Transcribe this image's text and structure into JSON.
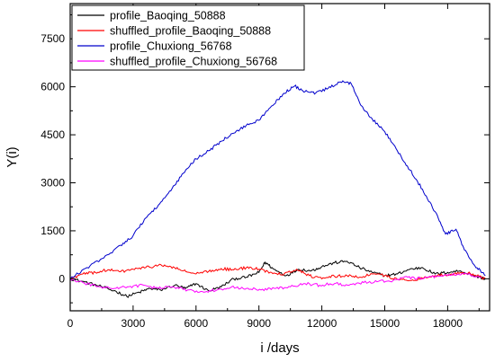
{
  "chart_data": {
    "type": "line",
    "xlabel": "i /days",
    "ylabel": "Y(i)",
    "xlim": [
      0,
      20000
    ],
    "ylim": [
      -1000,
      8600
    ],
    "x_ticks": [
      0,
      3000,
      6000,
      9000,
      12000,
      15000,
      18000
    ],
    "y_ticks": [
      0,
      1500,
      3000,
      4500,
      6000,
      7500
    ],
    "x_tick_labels": [
      "0",
      "3000",
      "6000",
      "9000",
      "12000",
      "15000",
      "18000"
    ],
    "y_tick_labels": [
      "0",
      "1500",
      "3000",
      "4500",
      "6000",
      "7500"
    ],
    "legend_position": "top-left",
    "grid": false,
    "series": [
      {
        "name": "profile_Baoqing_50888",
        "color": "#000000",
        "x": [
          0,
          700,
          1500,
          2200,
          2700,
          3300,
          3800,
          4300,
          5000,
          5500,
          6000,
          6600,
          7200,
          7800,
          8400,
          9000,
          9300,
          9700,
          10300,
          10900,
          11500,
          12000,
          12600,
          13200,
          13800,
          14400,
          15000,
          15600,
          16200,
          16800,
          17400,
          18000,
          18600,
          19200,
          19800
        ],
        "y": [
          0,
          -100,
          -250,
          -400,
          -550,
          -420,
          -300,
          -350,
          -200,
          -300,
          -150,
          -380,
          -250,
          0,
          50,
          200,
          520,
          300,
          100,
          300,
          250,
          380,
          500,
          550,
          350,
          200,
          100,
          150,
          300,
          350,
          150,
          200,
          250,
          100,
          0
        ]
      },
      {
        "name": "shuffled_profile_Baoqing_50888",
        "color": "#ff0000",
        "x": [
          0,
          600,
          1200,
          1800,
          2400,
          3000,
          3600,
          4200,
          4800,
          5400,
          6000,
          6600,
          7200,
          7800,
          8400,
          9000,
          9600,
          10200,
          10800,
          11400,
          12000,
          12600,
          13200,
          13800,
          14400,
          15000,
          15600,
          16200,
          16800,
          17400,
          18000,
          18600,
          19200,
          19800
        ],
        "y": [
          0,
          150,
          200,
          280,
          220,
          300,
          350,
          420,
          380,
          250,
          150,
          230,
          320,
          280,
          350,
          300,
          200,
          150,
          300,
          100,
          0,
          80,
          100,
          50,
          150,
          100,
          -20,
          -50,
          20,
          100,
          120,
          200,
          150,
          0
        ]
      },
      {
        "name": "profile_Chuxiong_56768",
        "color": "#0000cc",
        "x": [
          0,
          800,
          1600,
          2400,
          3000,
          3600,
          4200,
          4800,
          5400,
          6000,
          6600,
          7200,
          7800,
          8400,
          9000,
          9600,
          10200,
          10700,
          11200,
          11700,
          12300,
          12900,
          13400,
          13900,
          14400,
          15000,
          15600,
          16200,
          16800,
          17400,
          17900,
          18400,
          18800,
          19300,
          19800
        ],
        "y": [
          0,
          350,
          650,
          1050,
          1350,
          1900,
          2300,
          2750,
          3300,
          3750,
          4000,
          4300,
          4550,
          4800,
          4950,
          5400,
          5800,
          6020,
          5850,
          5800,
          5950,
          6150,
          6100,
          5400,
          5000,
          4600,
          4000,
          3400,
          2800,
          2100,
          1400,
          1550,
          900,
          400,
          100
        ]
      },
      {
        "name": "shuffled_profile_Chuxiong_56768",
        "color": "#ff00ff",
        "x": [
          0,
          700,
          1400,
          2100,
          2800,
          3500,
          4200,
          4900,
          5600,
          6300,
          7000,
          7700,
          8400,
          9100,
          9800,
          10500,
          11200,
          11900,
          12600,
          13300,
          14000,
          14700,
          15400,
          16100,
          16800,
          17500,
          18200,
          18900,
          19600
        ],
        "y": [
          0,
          -150,
          -250,
          -300,
          -250,
          -200,
          -300,
          -250,
          -350,
          -400,
          -350,
          -250,
          -300,
          -350,
          -300,
          -250,
          -150,
          -200,
          -150,
          -200,
          -120,
          -80,
          -50,
          50,
          0,
          80,
          120,
          150,
          50
        ]
      }
    ]
  }
}
